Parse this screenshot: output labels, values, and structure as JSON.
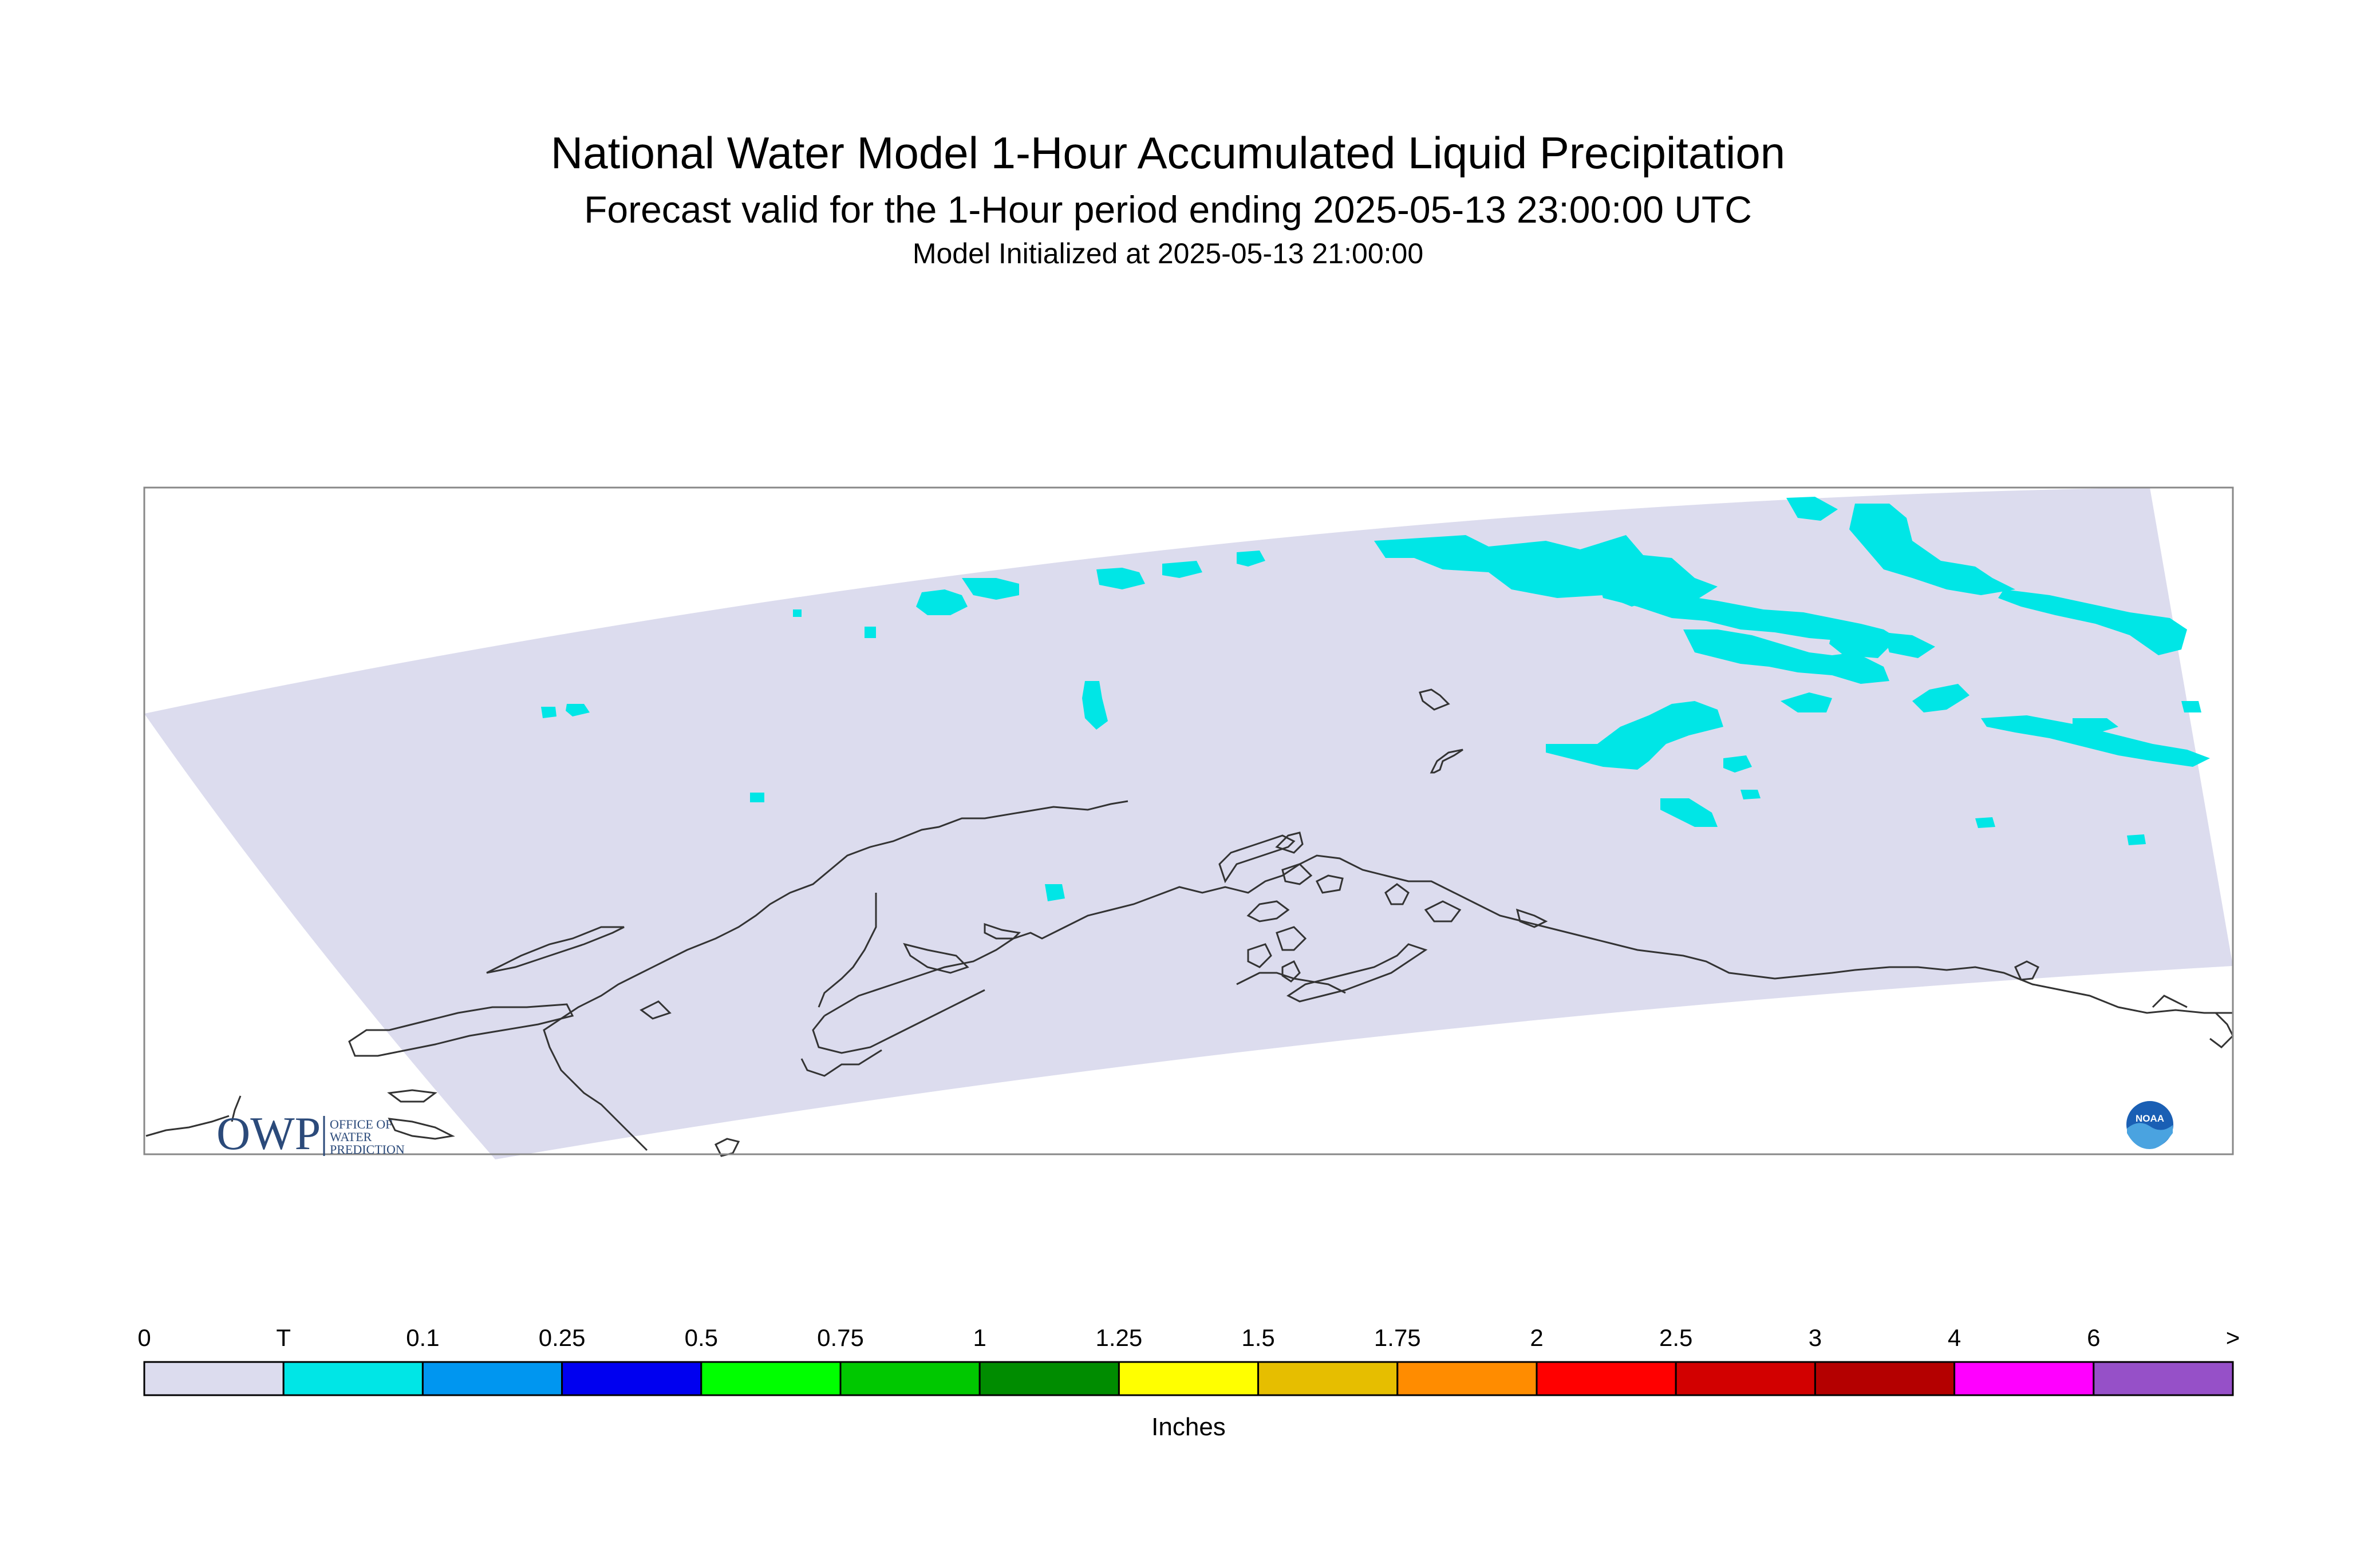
{
  "title": "National Water Model 1-Hour Accumulated Liquid Precipitation",
  "subtitle": "Forecast valid for the 1-Hour period ending 2025-05-13 23:00:00 UTC",
  "init_line": "Model Initialized at 2025-05-13 21:00:00",
  "legend": {
    "unit_label": "Inches",
    "tick_labels": [
      "0",
      "T",
      "0.1",
      "0.25",
      "0.5",
      "0.75",
      "1",
      "1.25",
      "1.5",
      "1.75",
      "2",
      "2.5",
      "3",
      "4",
      "6",
      ">"
    ],
    "bins": [
      {
        "color": "#dcdcee"
      },
      {
        "color": "#00e6e6"
      },
      {
        "color": "#0096f0"
      },
      {
        "color": "#0000f0"
      },
      {
        "color": "#00ff00"
      },
      {
        "color": "#00c800"
      },
      {
        "color": "#008c00"
      },
      {
        "color": "#ffff00"
      },
      {
        "color": "#e6be00"
      },
      {
        "color": "#ff8c00"
      },
      {
        "color": "#ff0000"
      },
      {
        "color": "#d20000"
      },
      {
        "color": "#b40000"
      },
      {
        "color": "#ff00ff"
      },
      {
        "color": "#9650c8"
      }
    ]
  },
  "map": {
    "domain_fill": "#dcdcee",
    "precip_color": "#00e6e6",
    "coastline_color": "#333333"
  },
  "logos": {
    "owp_letters": "OWP",
    "owp_text": [
      "OFFICE OF",
      "WATER",
      "PREDICTION"
    ],
    "noaa_text": "NOAA"
  }
}
